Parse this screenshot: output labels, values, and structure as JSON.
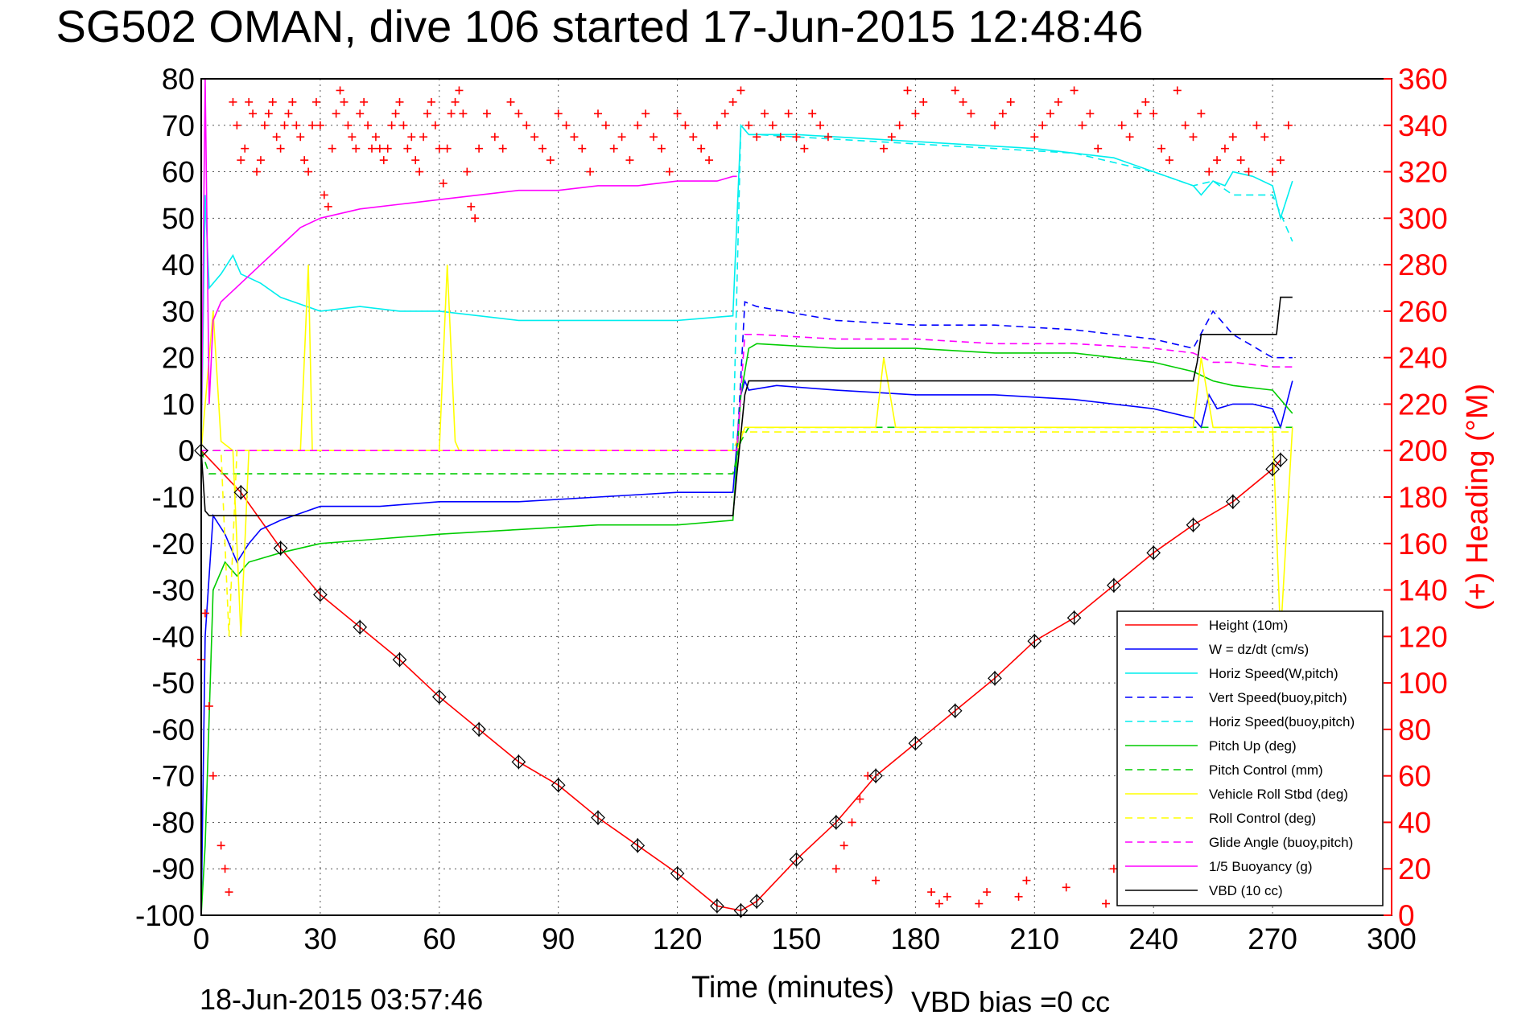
{
  "chart_data": {
    "type": "line",
    "title": "SG502 OMAN, dive 106 started 17-Jun-2015 12:48:46",
    "xlabel": "Time (minutes)",
    "ylabel": "",
    "y2label": "(+) Heading (°M)",
    "xlim": [
      0,
      300
    ],
    "ylim": [
      -100,
      80
    ],
    "y2lim": [
      0,
      360
    ],
    "x_ticks": [
      "0",
      "30",
      "60",
      "90",
      "120",
      "150",
      "180",
      "210",
      "240",
      "270",
      "300"
    ],
    "y_ticks": [
      "80",
      "70",
      "60",
      "50",
      "40",
      "30",
      "20",
      "10",
      "0",
      "-10",
      "-20",
      "-30",
      "-40",
      "-50",
      "-60",
      "-70",
      "-80",
      "-90",
      "-100"
    ],
    "y2_ticks": [
      "360",
      "340",
      "320",
      "300",
      "280",
      "260",
      "240",
      "220",
      "200",
      "180",
      "160",
      "140",
      "120",
      "100",
      "80",
      "60",
      "40",
      "20",
      "0"
    ],
    "grid": true,
    "legend_position": "bottom-right",
    "footer_left": "18-Jun-2015 03:57:46",
    "footer_right": "VBD bias =0 cc",
    "series": [
      {
        "name": "Height (10m)",
        "color": "#ff0000",
        "dash": "solid",
        "x": [
          0,
          10,
          20,
          30,
          40,
          50,
          60,
          70,
          80,
          90,
          100,
          110,
          120,
          130,
          136,
          140,
          150,
          160,
          170,
          180,
          190,
          200,
          210,
          220,
          230,
          240,
          250,
          260,
          270,
          272
        ],
        "y": [
          0,
          -9,
          -21,
          -31,
          -38,
          -45,
          -53,
          -60,
          -67,
          -72,
          -79,
          -85,
          -91,
          -98,
          -99,
          -97,
          -88,
          -80,
          -70,
          -63,
          -56,
          -49,
          -41,
          -36,
          -29,
          -22,
          -16,
          -11,
          -4,
          -2
        ]
      },
      {
        "name": "W = dz/dt (cm/s)",
        "color": "#0000ff",
        "dash": "solid",
        "x": [
          0,
          1,
          3,
          6,
          9,
          12,
          15,
          20,
          30,
          45,
          60,
          80,
          100,
          120,
          134,
          136,
          137,
          138,
          145,
          160,
          180,
          200,
          220,
          240,
          250,
          252,
          254,
          256,
          260,
          265,
          270,
          272,
          275
        ],
        "y": [
          -100,
          -40,
          -14,
          -18,
          -24,
          -20,
          -17,
          -15,
          -12,
          -12,
          -11,
          -11,
          -10,
          -9,
          -9,
          12,
          15,
          13,
          14,
          13,
          12,
          12,
          11,
          9,
          7,
          5,
          12,
          9,
          10,
          10,
          9,
          5,
          15
        ]
      },
      {
        "name": "Horiz Speed(W,pitch)",
        "color": "#00eeee",
        "dash": "solid",
        "x": [
          0,
          1,
          2,
          5,
          8,
          10,
          15,
          20,
          30,
          40,
          50,
          60,
          80,
          100,
          120,
          134,
          136,
          138,
          140,
          150,
          170,
          190,
          210,
          230,
          250,
          252,
          255,
          258,
          260,
          265,
          270,
          272,
          275
        ],
        "y": [
          0,
          55,
          35,
          38,
          42,
          38,
          36,
          33,
          30,
          31,
          30,
          30,
          28,
          28,
          28,
          29,
          70,
          68,
          68,
          68,
          67,
          66,
          65,
          63,
          57,
          55,
          58,
          57,
          60,
          59,
          57,
          50,
          58
        ]
      },
      {
        "name": "Vert Speed(buoy,pitch)",
        "color": "#0000ff",
        "dash": "dash",
        "x": [
          135,
          137,
          140,
          160,
          180,
          200,
          220,
          240,
          250,
          255,
          260,
          270,
          275
        ],
        "y": [
          0,
          32,
          31,
          28,
          27,
          27,
          26,
          24,
          22,
          30,
          25,
          20,
          20
        ]
      },
      {
        "name": "Horiz Speed(buoy,pitch)",
        "color": "#00eeee",
        "dash": "dash",
        "x": [
          134,
          136,
          138,
          140,
          160,
          180,
          200,
          220,
          240,
          250,
          255,
          260,
          270,
          275
        ],
        "y": [
          0,
          70,
          68,
          68,
          67,
          66,
          65,
          64,
          60,
          57,
          58,
          55,
          55,
          45
        ]
      },
      {
        "name": "Pitch Up (deg)",
        "color": "#00cc00",
        "dash": "solid",
        "x": [
          0,
          1,
          3,
          6,
          9,
          12,
          20,
          30,
          45,
          60,
          80,
          100,
          120,
          134,
          136,
          138,
          140,
          160,
          180,
          200,
          220,
          240,
          250,
          255,
          260,
          270,
          275
        ],
        "y": [
          -100,
          -85,
          -30,
          -24,
          -27,
          -24,
          -22,
          -20,
          -19,
          -18,
          -17,
          -16,
          -16,
          -15,
          12,
          22,
          23,
          22,
          22,
          21,
          21,
          19,
          17,
          15,
          14,
          13,
          8
        ]
      },
      {
        "name": "Pitch Control (mm)",
        "color": "#00cc00",
        "dash": "dash",
        "x": [
          0,
          2,
          5,
          20,
          60,
          100,
          134,
          136,
          138,
          160,
          200,
          240,
          270,
          275
        ],
        "y": [
          0,
          -5,
          -5,
          -5,
          -5,
          -5,
          -5,
          2,
          5,
          5,
          5,
          5,
          5,
          5
        ]
      },
      {
        "name": "Vehicle Roll Stbd (deg)",
        "color": "#ffff00",
        "dash": "solid",
        "x": [
          0,
          3,
          5,
          8,
          10,
          12,
          20,
          25,
          27,
          28,
          30,
          60,
          62,
          64,
          65,
          100,
          134,
          135,
          137,
          140,
          160,
          170,
          172,
          175,
          200,
          230,
          245,
          250,
          252,
          255,
          260,
          265,
          270,
          272,
          275
        ],
        "y": [
          0,
          30,
          2,
          0,
          -40,
          0,
          0,
          0,
          40,
          0,
          0,
          0,
          40,
          2,
          0,
          0,
          0,
          0,
          5,
          5,
          5,
          5,
          20,
          5,
          5,
          5,
          5,
          5,
          20,
          5,
          5,
          5,
          5,
          -40,
          5
        ]
      },
      {
        "name": "Roll Control (deg)",
        "color": "#ffff00",
        "dash": "dash",
        "x": [
          0,
          5,
          7,
          9,
          20,
          40,
          80,
          120,
          134,
          136,
          138,
          160,
          200,
          240,
          270,
          275
        ],
        "y": [
          0,
          0,
          -40,
          0,
          0,
          0,
          0,
          0,
          0,
          4,
          4,
          4,
          4,
          4,
          4,
          4
        ]
      },
      {
        "name": "Glide Angle (buoy,pitch)",
        "color": "#ff00ff",
        "dash": "dash",
        "x": [
          0,
          60,
          100,
          134,
          135,
          137,
          140,
          160,
          180,
          200,
          220,
          240,
          250,
          255,
          260,
          270,
          275
        ],
        "y": [
          0,
          0,
          0,
          0,
          0,
          25,
          25,
          24,
          24,
          23,
          23,
          22,
          21,
          19,
          19,
          18,
          18
        ]
      },
      {
        "name": "1/5 Buoyancy (g)",
        "color": "#ff00ff",
        "dash": "solid",
        "x": [
          0,
          1,
          2,
          3,
          5,
          10,
          15,
          20,
          25,
          30,
          40,
          50,
          60,
          70,
          80,
          90,
          100,
          110,
          120,
          130,
          134,
          135
        ],
        "y": [
          0,
          80,
          10,
          28,
          32,
          36,
          40,
          44,
          48,
          50,
          52,
          53,
          54,
          55,
          56,
          56,
          57,
          57,
          58,
          58,
          59,
          59
        ]
      },
      {
        "name": "VBD (10 cc)",
        "color": "#000000",
        "dash": "solid",
        "x": [
          0,
          1,
          2,
          3,
          40,
          134,
          135,
          137,
          138,
          140,
          250,
          251,
          252,
          270,
          271,
          272,
          275
        ],
        "y": [
          0,
          -13,
          -14,
          -14,
          -14,
          -14,
          -5,
          12,
          15,
          15,
          15,
          19,
          25,
          25,
          25,
          33,
          33
        ]
      }
    ],
    "heading": {
      "name": "(+) Heading",
      "color": "#ff0000",
      "marker": "+",
      "axis": "right",
      "x": [
        0,
        1,
        2,
        3,
        5,
        6,
        7,
        8,
        9,
        10,
        11,
        12,
        13,
        14,
        15,
        16,
        17,
        18,
        19,
        20,
        21,
        22,
        23,
        24,
        25,
        26,
        27,
        28,
        29,
        30,
        31,
        32,
        33,
        34,
        35,
        36,
        37,
        38,
        39,
        40,
        41,
        42,
        43,
        44,
        45,
        46,
        47,
        48,
        49,
        50,
        51,
        52,
        53,
        54,
        55,
        56,
        57,
        58,
        59,
        60,
        61,
        62,
        63,
        64,
        65,
        66,
        67,
        68,
        69,
        70,
        72,
        74,
        76,
        78,
        80,
        82,
        84,
        86,
        88,
        90,
        92,
        94,
        96,
        98,
        100,
        102,
        104,
        106,
        108,
        110,
        112,
        114,
        116,
        118,
        120,
        122,
        124,
        126,
        128,
        130,
        132,
        134,
        136,
        138,
        140,
        142,
        144,
        146,
        148,
        150,
        152,
        154,
        156,
        158,
        160,
        162,
        164,
        166,
        168,
        170,
        172,
        174,
        176,
        178,
        180,
        182,
        184,
        186,
        188,
        190,
        192,
        194,
        196,
        198,
        200,
        202,
        204,
        206,
        208,
        210,
        212,
        214,
        216,
        218,
        220,
        222,
        224,
        226,
        228,
        230,
        232,
        234,
        236,
        238,
        240,
        242,
        244,
        246,
        248,
        250,
        252,
        254,
        256,
        258,
        260,
        262,
        264,
        266,
        268,
        270,
        272,
        274
      ],
      "y": [
        110,
        130,
        90,
        60,
        30,
        20,
        10,
        350,
        340,
        325,
        330,
        350,
        345,
        320,
        325,
        340,
        345,
        350,
        335,
        330,
        340,
        345,
        350,
        340,
        335,
        325,
        320,
        340,
        350,
        340,
        310,
        305,
        330,
        345,
        355,
        350,
        340,
        335,
        330,
        345,
        350,
        340,
        330,
        335,
        330,
        325,
        330,
        340,
        345,
        350,
        340,
        330,
        335,
        325,
        320,
        335,
        345,
        350,
        340,
        330,
        315,
        330,
        345,
        350,
        355,
        345,
        320,
        305,
        300,
        330,
        345,
        335,
        330,
        350,
        345,
        340,
        335,
        330,
        325,
        345,
        340,
        335,
        330,
        320,
        345,
        340,
        330,
        335,
        325,
        340,
        345,
        335,
        330,
        320,
        345,
        340,
        335,
        330,
        325,
        340,
        345,
        350,
        355,
        340,
        335,
        345,
        340,
        335,
        345,
        335,
        330,
        345,
        340,
        335,
        20,
        30,
        40,
        50,
        60,
        15,
        330,
        335,
        340,
        355,
        345,
        350,
        10,
        5,
        8,
        355,
        350,
        345,
        5,
        10,
        340,
        345,
        350,
        8,
        15,
        335,
        340,
        345,
        350,
        12,
        355,
        340,
        345,
        330,
        5,
        20,
        340,
        335,
        345,
        350,
        345,
        330,
        325,
        355,
        340,
        335,
        345,
        320,
        325,
        330,
        335,
        325,
        320,
        340,
        335,
        320,
        325,
        340
      ]
    }
  }
}
